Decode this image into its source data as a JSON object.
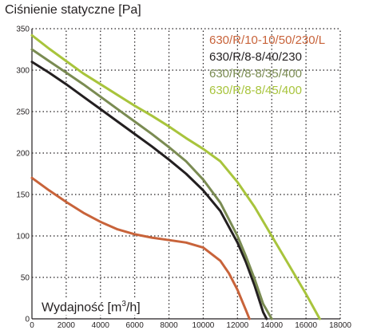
{
  "chart_data": {
    "type": "line",
    "ylabel": "Ciśnienie statyczne [Pa]",
    "xlabel_main": "Wydajność [m",
    "xlabel_sup": "3",
    "xlabel_end": "/h]",
    "xlim": [
      0,
      18000
    ],
    "ylim": [
      0,
      350
    ],
    "x_ticks": [
      0,
      2000,
      4000,
      6000,
      8000,
      10000,
      12000,
      14000,
      16000,
      18000
    ],
    "x_tick_labels": [
      "0",
      "2000",
      "4000",
      "6000",
      "8000",
      "10000",
      "12000",
      "14000",
      "16000",
      "18000"
    ],
    "y_ticks": [
      0,
      50,
      100,
      150,
      200,
      250,
      300,
      350
    ],
    "y_tick_labels": [
      "0",
      "50",
      "100",
      "150",
      "200",
      "250",
      "300",
      "350"
    ],
    "grid": true,
    "legend_position": "top-right",
    "series": [
      {
        "name": "630/R/10-10/50/230/L",
        "color": "#c8633a",
        "points": [
          [
            0,
            170
          ],
          [
            1000,
            155
          ],
          [
            2000,
            141
          ],
          [
            3000,
            128
          ],
          [
            4000,
            117
          ],
          [
            5000,
            108
          ],
          [
            6000,
            102
          ],
          [
            7000,
            98
          ],
          [
            8000,
            95
          ],
          [
            9000,
            92
          ],
          [
            10000,
            86
          ],
          [
            11000,
            70
          ],
          [
            11500,
            55
          ],
          [
            12000,
            35
          ],
          [
            12500,
            10
          ],
          [
            12700,
            0
          ]
        ]
      },
      {
        "name": "630/R/8-8/40/230",
        "color": "#231f20",
        "points": [
          [
            0,
            310
          ],
          [
            1000,
            297
          ],
          [
            2000,
            283
          ],
          [
            3000,
            268
          ],
          [
            4000,
            253
          ],
          [
            5000,
            238
          ],
          [
            6000,
            223
          ],
          [
            7000,
            208
          ],
          [
            8000,
            192
          ],
          [
            9000,
            175
          ],
          [
            10000,
            155
          ],
          [
            11000,
            130
          ],
          [
            12000,
            92
          ],
          [
            12500,
            68
          ],
          [
            13000,
            40
          ],
          [
            13500,
            8
          ],
          [
            13700,
            0
          ]
        ]
      },
      {
        "name": "630/R/8-8/35/400",
        "color": "#7a8b52",
        "points": [
          [
            0,
            325
          ],
          [
            1000,
            311
          ],
          [
            2000,
            297
          ],
          [
            3000,
            283
          ],
          [
            4000,
            268
          ],
          [
            5000,
            253
          ],
          [
            6000,
            238
          ],
          [
            7000,
            223
          ],
          [
            8000,
            207
          ],
          [
            9000,
            190
          ],
          [
            10000,
            168
          ],
          [
            11000,
            140
          ],
          [
            12000,
            100
          ],
          [
            12500,
            75
          ],
          [
            13000,
            48
          ],
          [
            13500,
            18
          ],
          [
            14000,
            0
          ]
        ]
      },
      {
        "name": "630/R/8-8/45/400",
        "color": "#a8c43c",
        "points": [
          [
            0,
            342
          ],
          [
            1000,
            326
          ],
          [
            2000,
            311
          ],
          [
            3000,
            296
          ],
          [
            4000,
            283
          ],
          [
            5000,
            270
          ],
          [
            6000,
            257
          ],
          [
            7000,
            245
          ],
          [
            8000,
            232
          ],
          [
            9000,
            218
          ],
          [
            10000,
            205
          ],
          [
            11000,
            190
          ],
          [
            12000,
            165
          ],
          [
            13000,
            135
          ],
          [
            14000,
            100
          ],
          [
            15000,
            65
          ],
          [
            16000,
            30
          ],
          [
            16800,
            0
          ]
        ]
      }
    ]
  }
}
